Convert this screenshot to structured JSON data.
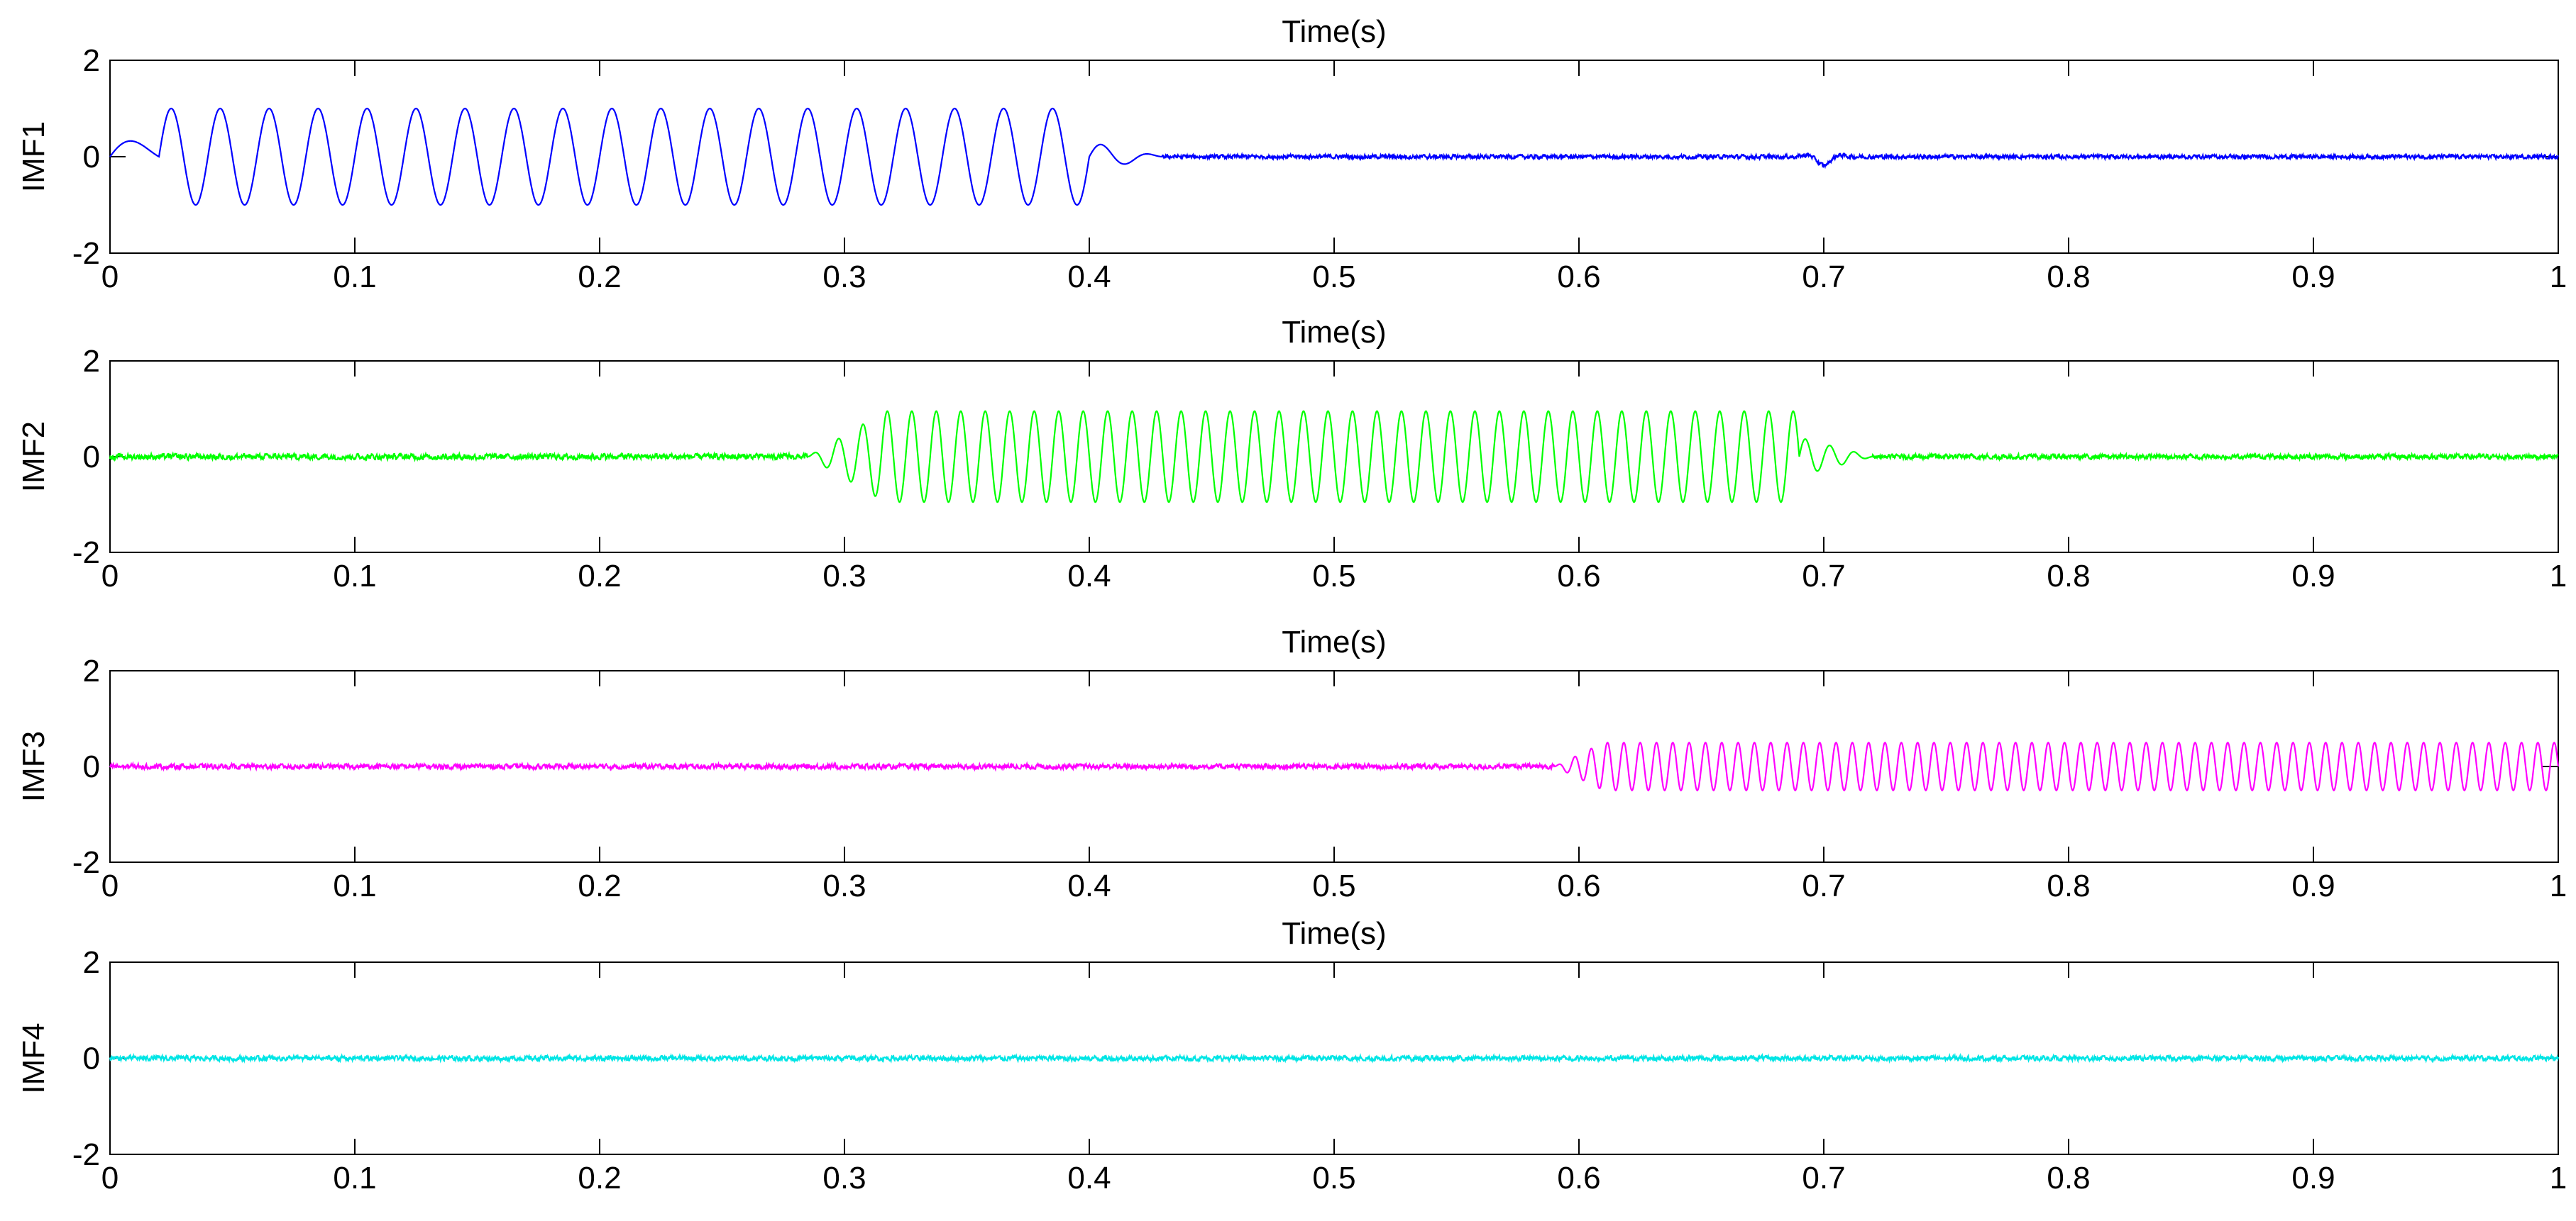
{
  "chart_data": [
    {
      "type": "line",
      "title": "Time(s)",
      "xlabel": "",
      "ylabel": "IMF1",
      "xlim": [
        0,
        1
      ],
      "ylim": [
        -2,
        2
      ],
      "xticks": [
        0,
        0.1,
        0.2,
        0.3,
        0.4,
        0.5,
        0.6,
        0.7,
        0.8,
        0.9,
        1
      ],
      "yticks": [
        -2,
        0,
        2
      ],
      "color": "#0000ff",
      "series": [
        {
          "name": "IMF1",
          "segments": [
            {
              "kind": "start_bump",
              "t0": 0,
              "t1": 0.02,
              "amp": 0.45
            },
            {
              "kind": "sine",
              "t0": 0.02,
              "t1": 0.4,
              "freq": 50,
              "amp": 1.0
            },
            {
              "kind": "decay",
              "t0": 0.4,
              "t1": 0.43,
              "amp": 0.3
            },
            {
              "kind": "noise",
              "t0": 0.43,
              "t1": 1.0,
              "amp": 0.04
            },
            {
              "kind": "blip",
              "t": 0.7,
              "amp": -0.18,
              "width": 0.006
            }
          ]
        }
      ]
    },
    {
      "type": "line",
      "title": "Time(s)",
      "xlabel": "",
      "ylabel": "IMF2",
      "xlim": [
        0,
        1
      ],
      "ylim": [
        -2,
        2
      ],
      "xticks": [
        0,
        0.1,
        0.2,
        0.3,
        0.4,
        0.5,
        0.6,
        0.7,
        0.8,
        0.9,
        1
      ],
      "yticks": [
        -2,
        0,
        2
      ],
      "color": "#00ff00",
      "series": [
        {
          "name": "IMF2",
          "segments": [
            {
              "kind": "noise",
              "t0": 0,
              "t1": 0.285,
              "amp": 0.06
            },
            {
              "kind": "ramp_sine",
              "t0": 0.285,
              "t1": 0.315,
              "freq": 100,
              "amp": 0.9
            },
            {
              "kind": "sine",
              "t0": 0.315,
              "t1": 0.69,
              "freq": 100,
              "amp": 0.95
            },
            {
              "kind": "decay",
              "t0": 0.69,
              "t1": 0.72,
              "amp": 0.4,
              "freq": 100
            },
            {
              "kind": "noise",
              "t0": 0.72,
              "t1": 1.0,
              "amp": 0.05
            }
          ]
        }
      ]
    },
    {
      "type": "line",
      "title": "Time(s)",
      "xlabel": "",
      "ylabel": "IMF3",
      "xlim": [
        0,
        1
      ],
      "ylim": [
        -2,
        2
      ],
      "xticks": [
        0,
        0.1,
        0.2,
        0.3,
        0.4,
        0.5,
        0.6,
        0.7,
        0.8,
        0.9,
        1
      ],
      "yticks": [
        -2,
        0,
        2
      ],
      "color": "#ff00ff",
      "series": [
        {
          "name": "IMF3",
          "segments": [
            {
              "kind": "noise",
              "t0": 0,
              "t1": 0.59,
              "amp": 0.05
            },
            {
              "kind": "ramp_sine",
              "t0": 0.59,
              "t1": 0.61,
              "freq": 150,
              "amp": 0.5
            },
            {
              "kind": "sine",
              "t0": 0.61,
              "t1": 1.0,
              "freq": 150,
              "amp": 0.5
            }
          ]
        }
      ]
    },
    {
      "type": "line",
      "title": "Time(s)",
      "xlabel": "",
      "ylabel": "IMF4",
      "xlim": [
        0,
        1
      ],
      "ylim": [
        -2,
        2
      ],
      "xticks": [
        0,
        0.1,
        0.2,
        0.3,
        0.4,
        0.5,
        0.6,
        0.7,
        0.8,
        0.9,
        1
      ],
      "yticks": [
        -2,
        0,
        2
      ],
      "color": "#00e5e5",
      "series": [
        {
          "name": "IMF4",
          "segments": [
            {
              "kind": "noise",
              "t0": 0,
              "t1": 1.0,
              "amp": 0.05
            }
          ]
        }
      ]
    }
  ]
}
